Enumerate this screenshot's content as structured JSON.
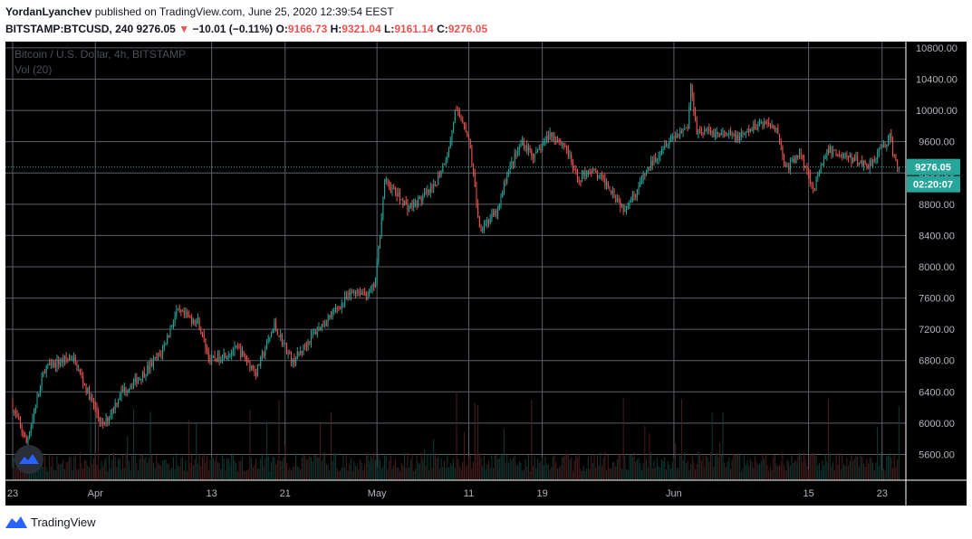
{
  "header": {
    "author": "YordanLyanchev",
    "published_text": "published on TradingView.com, June 25, 2020 12:39:54 EEST",
    "symbol": "BITSTAMP:BTCUSD, 240",
    "last_price": "9276.05",
    "down_arrow": "▼",
    "change": "−10.01 (−0.11%)",
    "o_label": "O:",
    "o_value": "9166.73",
    "h_label": "H:",
    "h_value": "9321.04",
    "l_label": "L:",
    "l_value": "9161.14",
    "c_label": "C:",
    "c_value": "9276.05"
  },
  "legend": {
    "title": "Bitcoin / U.S. Dollar, 4h, BITSTAMP",
    "volume": "Vol (20)"
  },
  "footer": {
    "brand": "TradingView",
    "logo_icon": "tradingview-logo-icon"
  },
  "colors": {
    "up": "#26a69a",
    "down": "#ef5350",
    "background": "#000000",
    "grid": "#5d606b",
    "price_tag": "#26a69a"
  },
  "price_tag": {
    "value": "9276.05",
    "countdown": "02:20:07"
  },
  "chart_data": {
    "type": "candlestick",
    "y_ticks": [
      "10800.00",
      "10400.00",
      "10000.00",
      "9600.00",
      "9200.00",
      "8800.00",
      "8400.00",
      "8000.00",
      "7600.00",
      "7200.00",
      "6800.00",
      "6400.00",
      "6000.00",
      "5600.00"
    ],
    "y_tick_values": [
      10800,
      10400,
      10000,
      9600,
      9200,
      8800,
      8400,
      8000,
      7600,
      7200,
      6800,
      6400,
      6000,
      5600
    ],
    "ylim": [
      5270,
      10880
    ],
    "x_ticks": [
      {
        "label": "23",
        "index": 0
      },
      {
        "label": "Apr",
        "index": 54
      },
      {
        "label": "13",
        "index": 130
      },
      {
        "label": "21",
        "index": 178
      },
      {
        "label": "May",
        "index": 238
      },
      {
        "label": "11",
        "index": 298
      },
      {
        "label": "19",
        "index": 346
      },
      {
        "label": "Jun",
        "index": 432
      },
      {
        "label": "15",
        "index": 520
      },
      {
        "label": "23",
        "index": 568
      }
    ],
    "candle_count": 580,
    "keypoints": [
      [
        0,
        6250
      ],
      [
        10,
        5750
      ],
      [
        22,
        6700
      ],
      [
        40,
        6850
      ],
      [
        60,
        5950
      ],
      [
        72,
        6400
      ],
      [
        85,
        6600
      ],
      [
        98,
        6900
      ],
      [
        108,
        7420
      ],
      [
        122,
        7300
      ],
      [
        130,
        6800
      ],
      [
        148,
        6950
      ],
      [
        160,
        6650
      ],
      [
        172,
        7250
      ],
      [
        184,
        6780
      ],
      [
        198,
        7150
      ],
      [
        210,
        7400
      ],
      [
        224,
        7700
      ],
      [
        234,
        7650
      ],
      [
        238,
        7800
      ],
      [
        244,
        9100
      ],
      [
        260,
        8750
      ],
      [
        276,
        9000
      ],
      [
        286,
        9500
      ],
      [
        290,
        9980
      ],
      [
        296,
        9850
      ],
      [
        300,
        9500
      ],
      [
        306,
        8500
      ],
      [
        318,
        8700
      ],
      [
        324,
        9200
      ],
      [
        334,
        9600
      ],
      [
        342,
        9400
      ],
      [
        352,
        9700
      ],
      [
        362,
        9550
      ],
      [
        370,
        9100
      ],
      [
        378,
        9250
      ],
      [
        390,
        9050
      ],
      [
        400,
        8750
      ],
      [
        408,
        8950
      ],
      [
        416,
        9250
      ],
      [
        428,
        9600
      ],
      [
        442,
        9800
      ],
      [
        444,
        10300
      ],
      [
        448,
        9750
      ],
      [
        462,
        9700
      ],
      [
        476,
        9650
      ],
      [
        490,
        9850
      ],
      [
        500,
        9800
      ],
      [
        506,
        9250
      ],
      [
        516,
        9450
      ],
      [
        524,
        9000
      ],
      [
        534,
        9500
      ],
      [
        546,
        9400
      ],
      [
        560,
        9300
      ],
      [
        568,
        9500
      ],
      [
        574,
        9650
      ],
      [
        578,
        9300
      ],
      [
        580,
        9276
      ]
    ],
    "volume_max": 1.0,
    "last_close": 9276.05
  }
}
